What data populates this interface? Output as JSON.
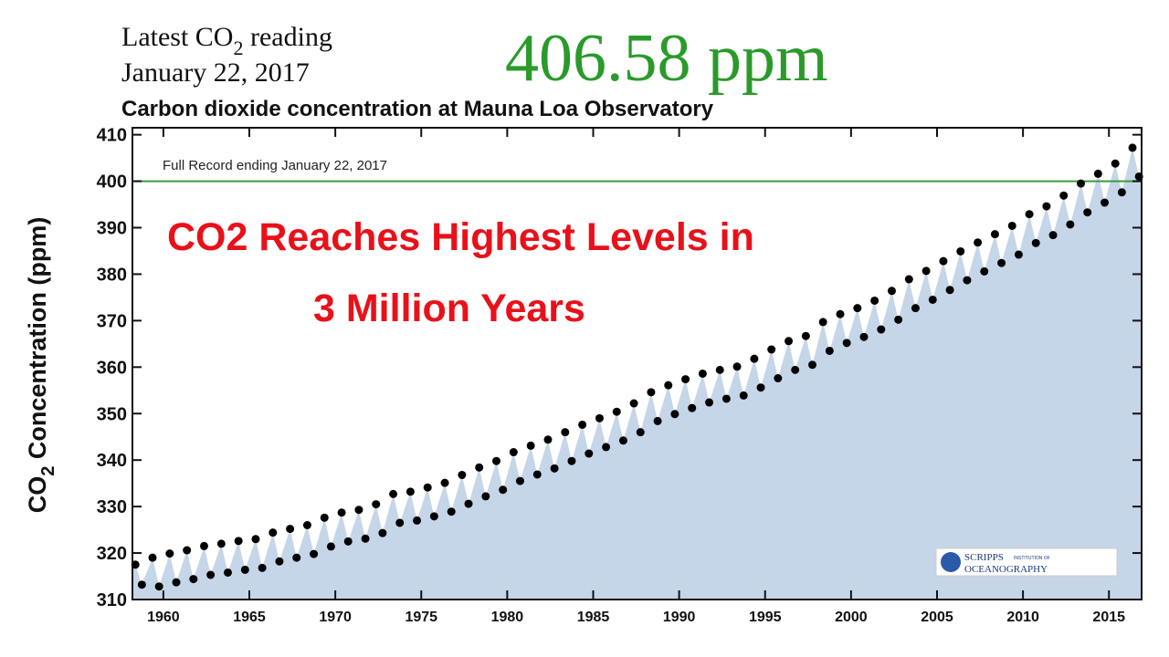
{
  "chart_data": {
    "type": "scatter",
    "header_line1": [
      "Latest CO",
      "2",
      " reading"
    ],
    "header_line2": "January 22, 2017",
    "latest_value_text": "406.58 ppm",
    "title": "Carbon dioxide concentration at Mauna Loa Observatory",
    "y_label": [
      "CO",
      "2",
      " Concentration (ppm)"
    ],
    "annotation": "Full Record ending January 22, 2017",
    "headline": [
      "CO2 Reaches Highest Levels in",
      "3 Million Years"
    ],
    "logo": [
      "SCRIPPS",
      "INSTITUTION OF",
      "OCEANOGRAPHY"
    ],
    "reference_line": {
      "value": 400,
      "color": "#3a9a3a"
    },
    "color": "#000000",
    "area_color": "#c6d6e9",
    "x": [
      1958.37,
      1958.75,
      1959.37,
      1959.75,
      1960.37,
      1960.75,
      1961.37,
      1961.75,
      1962.37,
      1962.75,
      1963.37,
      1963.75,
      1964.37,
      1964.75,
      1965.37,
      1965.75,
      1966.37,
      1966.75,
      1967.37,
      1967.75,
      1968.37,
      1968.75,
      1969.37,
      1969.75,
      1970.37,
      1970.75,
      1971.37,
      1971.75,
      1972.37,
      1972.75,
      1973.37,
      1973.75,
      1974.37,
      1974.75,
      1975.37,
      1975.75,
      1976.37,
      1976.75,
      1977.37,
      1977.75,
      1978.37,
      1978.75,
      1979.37,
      1979.75,
      1980.37,
      1980.75,
      1981.37,
      1981.75,
      1982.37,
      1982.75,
      1983.37,
      1983.75,
      1984.37,
      1984.75,
      1985.37,
      1985.75,
      1986.37,
      1986.75,
      1987.37,
      1987.75,
      1988.37,
      1988.75,
      1989.37,
      1989.75,
      1990.37,
      1990.75,
      1991.37,
      1991.75,
      1992.37,
      1992.75,
      1993.37,
      1993.75,
      1994.37,
      1994.75,
      1995.37,
      1995.75,
      1996.37,
      1996.75,
      1997.37,
      1997.75,
      1998.37,
      1998.75,
      1999.37,
      1999.75,
      2000.37,
      2000.75,
      2001.37,
      2001.75,
      2002.37,
      2002.75,
      2003.37,
      2003.75,
      2004.37,
      2004.75,
      2005.37,
      2005.75,
      2006.37,
      2006.75,
      2007.37,
      2007.75,
      2008.37,
      2008.75,
      2009.37,
      2009.75,
      2010.37,
      2010.75,
      2011.37,
      2011.75,
      2012.37,
      2012.75,
      2013.37,
      2013.75,
      2014.37,
      2014.75,
      2015.37,
      2015.75,
      2016.37,
      2016.75
    ],
    "values": [
      317.5,
      313.2,
      319.0,
      312.8,
      319.9,
      313.7,
      320.6,
      314.4,
      321.5,
      315.3,
      322.0,
      315.8,
      322.6,
      316.4,
      323.0,
      316.8,
      324.4,
      318.2,
      325.2,
      319.0,
      326.0,
      319.8,
      327.6,
      321.4,
      328.7,
      322.5,
      329.3,
      323.1,
      330.5,
      324.3,
      332.7,
      326.5,
      333.2,
      327.0,
      334.1,
      327.9,
      335.1,
      328.9,
      336.8,
      330.6,
      338.4,
      332.2,
      339.8,
      333.6,
      341.7,
      335.5,
      343.1,
      336.9,
      344.4,
      338.2,
      346.0,
      339.8,
      347.6,
      341.4,
      349.0,
      342.8,
      350.4,
      344.2,
      352.2,
      346.0,
      354.6,
      348.4,
      356.1,
      349.9,
      357.4,
      351.2,
      358.6,
      352.4,
      359.4,
      353.2,
      360.1,
      353.9,
      361.8,
      355.6,
      363.8,
      357.6,
      365.6,
      359.4,
      366.7,
      360.5,
      369.7,
      363.5,
      371.4,
      365.2,
      372.7,
      366.5,
      374.3,
      368.1,
      376.4,
      370.2,
      378.9,
      372.7,
      380.7,
      374.5,
      382.8,
      376.6,
      384.9,
      378.7,
      386.8,
      380.6,
      388.6,
      382.4,
      390.4,
      384.2,
      392.9,
      386.7,
      394.6,
      388.4,
      396.9,
      390.7,
      399.5,
      393.3,
      401.6,
      395.4,
      403.8,
      397.6,
      407.2,
      401.0
    ],
    "xlim": [
      1958.2,
      2016.9
    ],
    "xticks": [
      1960,
      1965,
      1970,
      1975,
      1980,
      1985,
      1990,
      1995,
      2000,
      2005,
      2010,
      2015
    ],
    "ylim": [
      310,
      411.5
    ],
    "yticks": [
      310,
      320,
      330,
      340,
      350,
      360,
      370,
      380,
      390,
      400,
      410
    ]
  }
}
